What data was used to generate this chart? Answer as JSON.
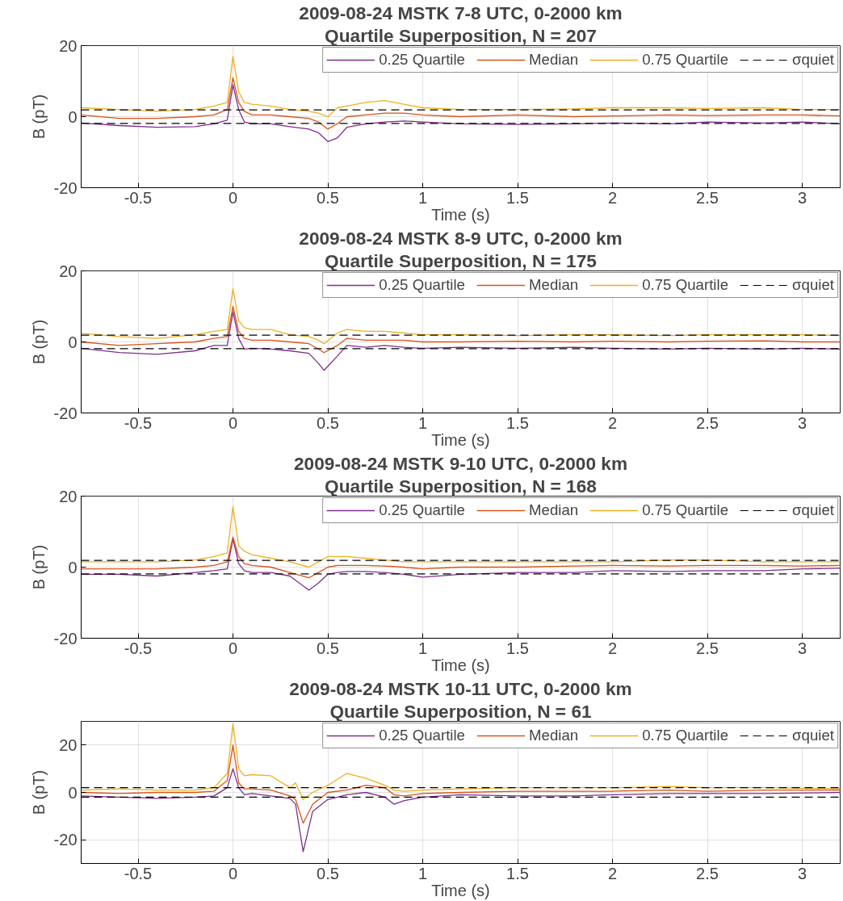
{
  "chart_data": [
    {
      "type": "line",
      "title": "2009-08-24 MSTK 7-8 UTC, 0-2000 km",
      "subtitle": "Quartile Superposition, N = 207",
      "xlabel": "Time (s)",
      "ylabel": "B (pT)",
      "xlim": [
        -0.8,
        3.2
      ],
      "ylim": [
        -20,
        20
      ],
      "xticks": [
        -0.5,
        0,
        0.5,
        1,
        1.5,
        2,
        2.5,
        3
      ],
      "yticks": [
        -20,
        0,
        20
      ],
      "grid": true,
      "legend": "top right",
      "x": [
        -0.8,
        -0.6,
        -0.4,
        -0.2,
        -0.1,
        -0.03,
        0,
        0.03,
        0.06,
        0.1,
        0.2,
        0.3,
        0.4,
        0.45,
        0.5,
        0.55,
        0.6,
        0.7,
        0.8,
        0.9,
        1.0,
        1.2,
        1.5,
        1.8,
        2.0,
        2.3,
        2.5,
        2.8,
        3.0,
        3.2
      ],
      "series": [
        {
          "name": "0.25 Quartile",
          "color": "#7e2f8e",
          "values": [
            -1.8,
            -2.5,
            -3,
            -2.8,
            -2,
            -1,
            9,
            2,
            -1.5,
            -2,
            -2,
            -2.8,
            -3.5,
            -4.5,
            -7,
            -6,
            -3,
            -2,
            -1.5,
            -1.2,
            -1.5,
            -2,
            -2.2,
            -2,
            -1.8,
            -2,
            -1.5,
            -1.8,
            -1.5,
            -2
          ]
        },
        {
          "name": "Median",
          "color": "#d95319",
          "values": [
            0.5,
            -0.5,
            -0.5,
            0,
            0.5,
            2,
            11,
            4,
            1.5,
            0.5,
            0.5,
            0,
            -0.5,
            -1.5,
            -3.5,
            -2,
            0,
            0.5,
            1,
            1,
            0.5,
            0,
            0.5,
            0,
            0.2,
            0.5,
            0.3,
            0.5,
            0.5,
            0.2
          ]
        },
        {
          "name": "0.75 Quartile",
          "color": "#edb120",
          "values": [
            2.5,
            2,
            1.5,
            2,
            3,
            4,
            17,
            7,
            4,
            3.5,
            3,
            2,
            1.5,
            1,
            0,
            2.5,
            3,
            4,
            4.5,
            3.5,
            2.5,
            2,
            2,
            2.2,
            2.5,
            2.5,
            2.3,
            2.5,
            2,
            2
          ]
        }
      ],
      "ref_lines": [
        {
          "axis": "y",
          "value": 1.9,
          "label": "σquiet",
          "color": "#000000",
          "line_style": "dashed"
        },
        {
          "axis": "y",
          "value": -1.9,
          "color": "#000000",
          "line_style": "dashed"
        }
      ]
    },
    {
      "type": "line",
      "title": "2009-08-24 MSTK 8-9 UTC, 0-2000 km",
      "subtitle": "Quartile Superposition, N = 175",
      "xlabel": "Time (s)",
      "ylabel": "B (pT)",
      "xlim": [
        -0.8,
        3.2
      ],
      "ylim": [
        -20,
        20
      ],
      "xticks": [
        -0.5,
        0,
        0.5,
        1,
        1.5,
        2,
        2.5,
        3
      ],
      "yticks": [
        -20,
        0,
        20
      ],
      "grid": true,
      "legend": "top right",
      "x": [
        -0.8,
        -0.6,
        -0.4,
        -0.2,
        -0.1,
        -0.03,
        0,
        0.03,
        0.06,
        0.1,
        0.2,
        0.3,
        0.4,
        0.45,
        0.48,
        0.55,
        0.6,
        0.7,
        0.8,
        0.9,
        1.0,
        1.2,
        1.5,
        1.8,
        2.0,
        2.3,
        2.5,
        2.8,
        3.0,
        3.2
      ],
      "series": [
        {
          "name": "0.25 Quartile",
          "color": "#7e2f8e",
          "values": [
            -1.8,
            -3,
            -3.5,
            -2.5,
            -1,
            -1,
            8.5,
            1,
            -2,
            -1.8,
            -2,
            -2.5,
            -3.2,
            -6,
            -8,
            -4,
            -1,
            -1.5,
            -1,
            -1.5,
            -1.8,
            -1.5,
            -1.8,
            -1.5,
            -1.8,
            -2,
            -1.8,
            -2,
            -1.8,
            -2
          ]
        },
        {
          "name": "Median",
          "color": "#d95319",
          "values": [
            0,
            -1,
            -0.5,
            0,
            1,
            1.5,
            10,
            3,
            1,
            0.5,
            0.5,
            0,
            -0.5,
            -2,
            -3,
            -1,
            1,
            0.5,
            0.5,
            0.5,
            0,
            0,
            0.2,
            0,
            0.2,
            0,
            0.2,
            0.3,
            0,
            0
          ]
        },
        {
          "name": "0.75 Quartile",
          "color": "#edb120",
          "values": [
            2.4,
            1.5,
            1,
            2,
            3,
            3.5,
            15,
            6,
            4,
            3.5,
            3.5,
            2,
            1.5,
            0.5,
            -0.5,
            2.5,
            3.5,
            3,
            3,
            2.5,
            2,
            2,
            1.8,
            2,
            2,
            1.8,
            2,
            2,
            2,
            1.8
          ]
        }
      ],
      "ref_lines": [
        {
          "axis": "y",
          "value": 1.9,
          "label": "σquiet",
          "color": "#000000",
          "line_style": "dashed"
        },
        {
          "axis": "y",
          "value": -1.9,
          "color": "#000000",
          "line_style": "dashed"
        }
      ]
    },
    {
      "type": "line",
      "title": "2009-08-24 MSTK 9-10 UTC, 0-2000 km",
      "subtitle": "Quartile Superposition, N = 168",
      "xlabel": "Time (s)",
      "ylabel": "B (pT)",
      "xlim": [
        -0.8,
        3.2
      ],
      "ylim": [
        -20,
        20
      ],
      "xticks": [
        -0.5,
        0,
        0.5,
        1,
        1.5,
        2,
        2.5,
        3
      ],
      "yticks": [
        -20,
        0,
        20
      ],
      "grid": true,
      "legend": "top right",
      "x": [
        -0.8,
        -0.6,
        -0.4,
        -0.2,
        -0.1,
        -0.03,
        0,
        0.03,
        0.06,
        0.1,
        0.2,
        0.3,
        0.4,
        0.45,
        0.5,
        0.55,
        0.6,
        0.7,
        0.8,
        0.9,
        1.0,
        1.2,
        1.5,
        1.8,
        2.0,
        2.3,
        2.5,
        2.8,
        3.0,
        3.2
      ],
      "series": [
        {
          "name": "0.25 Quartile",
          "color": "#7e2f8e",
          "values": [
            -2,
            -2,
            -2.5,
            -1.5,
            -1,
            -0.5,
            8,
            1,
            -1,
            -1.5,
            -1.5,
            -2.5,
            -6.5,
            -4.5,
            -2,
            -1.5,
            -1.2,
            -1.2,
            -1.5,
            -2,
            -2.8,
            -2,
            -1.5,
            -1.5,
            -1,
            -1.2,
            -1,
            -1,
            -0.5,
            -0.3
          ]
        },
        {
          "name": "Median",
          "color": "#d95319",
          "values": [
            -0.5,
            -0.5,
            -0.5,
            0,
            0.5,
            1.5,
            8.5,
            3,
            1,
            0.5,
            0,
            -1.5,
            -3,
            -1.5,
            0,
            0.5,
            0.5,
            0.5,
            0.3,
            0,
            -0.5,
            0,
            0,
            0.3,
            0.5,
            0.3,
            0.5,
            0.5,
            0.3,
            0.5
          ]
        },
        {
          "name": "0.75 Quartile",
          "color": "#edb120",
          "values": [
            1.5,
            1.5,
            1.5,
            2,
            3,
            4,
            17,
            6,
            4.5,
            3.5,
            2.5,
            1.5,
            0,
            1.5,
            3,
            3,
            3,
            2.5,
            2,
            1.5,
            1.5,
            1.5,
            1.5,
            1.5,
            1.5,
            2,
            2,
            1.5,
            1.5,
            1.5
          ]
        }
      ],
      "ref_lines": [
        {
          "axis": "y",
          "value": 1.9,
          "label": "σquiet",
          "color": "#000000",
          "line_style": "dashed"
        },
        {
          "axis": "y",
          "value": -1.9,
          "color": "#000000",
          "line_style": "dashed"
        }
      ]
    },
    {
      "type": "line",
      "title": "2009-08-24 MSTK 10-11 UTC, 0-2000 km",
      "subtitle": "Quartile Superposition, N = 61",
      "xlabel": "Time (s)",
      "ylabel": "B (pT)",
      "xlim": [
        -0.8,
        3.2
      ],
      "ylim": [
        -30,
        30
      ],
      "xticks": [
        -0.5,
        0,
        0.5,
        1,
        1.5,
        2,
        2.5,
        3
      ],
      "yticks": [
        -20,
        0,
        20
      ],
      "grid": true,
      "legend": "top right",
      "x": [
        -0.8,
        -0.6,
        -0.4,
        -0.2,
        -0.1,
        -0.03,
        0,
        0.03,
        0.06,
        0.1,
        0.2,
        0.3,
        0.33,
        0.37,
        0.42,
        0.5,
        0.6,
        0.7,
        0.8,
        0.85,
        0.9,
        1.0,
        1.2,
        1.5,
        1.8,
        2.0,
        2.3,
        2.5,
        2.8,
        3.2
      ],
      "series": [
        {
          "name": "0.25 Quartile",
          "color": "#7e2f8e",
          "values": [
            -1.5,
            -2,
            -2.5,
            -2,
            -1.5,
            2,
            10,
            2,
            -1,
            -0.5,
            -1.5,
            -2.5,
            -5,
            -25,
            -8,
            -3,
            -1,
            0,
            -2,
            -5,
            -3.5,
            -2,
            -1,
            -1.5,
            -1.5,
            -1,
            -0.5,
            -0.5,
            -0.5,
            0
          ]
        },
        {
          "name": "Median",
          "color": "#d95319",
          "values": [
            0,
            -0.5,
            0,
            0,
            0.5,
            5,
            20,
            4,
            1.5,
            1.5,
            1,
            -1.5,
            -3,
            -13,
            -5,
            0,
            1,
            3,
            2,
            -1,
            -1.5,
            -0.5,
            0,
            0.5,
            0.5,
            0.5,
            1,
            0.5,
            1,
            1
          ]
        },
        {
          "name": "0.75 Quartile",
          "color": "#edb120",
          "values": [
            1,
            1.5,
            1,
            1,
            2,
            8,
            29,
            10,
            7,
            7.5,
            7,
            2,
            4,
            -3,
            0,
            3,
            8,
            6,
            3,
            1,
            0.5,
            1,
            1.5,
            2,
            2,
            2,
            2.5,
            2,
            2,
            1.5
          ]
        }
      ],
      "ref_lines": [
        {
          "axis": "y",
          "value": 2,
          "label": "σquiet",
          "color": "#000000",
          "line_style": "dashed"
        },
        {
          "axis": "y",
          "value": -2,
          "color": "#000000",
          "line_style": "dashed"
        }
      ]
    }
  ]
}
